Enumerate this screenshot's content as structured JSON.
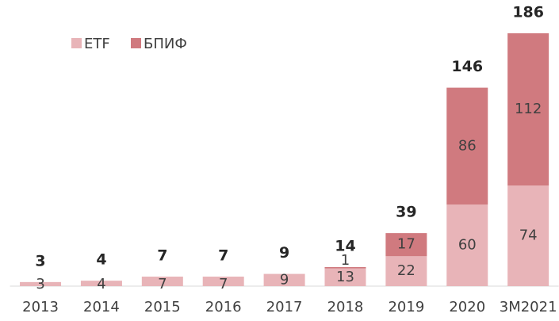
{
  "chart_data": {
    "type": "bar",
    "stacked": true,
    "categories": [
      "2013",
      "2014",
      "2015",
      "2016",
      "2017",
      "2018",
      "2019",
      "2020",
      "3M2021"
    ],
    "series": [
      {
        "name": "ETF",
        "color": "#e8b4b8",
        "values": [
          3,
          4,
          7,
          7,
          9,
          13,
          22,
          60,
          74
        ]
      },
      {
        "name": "БПИФ",
        "color": "#d07a7f",
        "values": [
          null,
          null,
          null,
          null,
          null,
          1,
          17,
          86,
          112
        ]
      }
    ],
    "totals": [
      3,
      4,
      7,
      7,
      9,
      14,
      39,
      146,
      186
    ],
    "ylim": [
      0,
      186
    ],
    "legend": "top-left"
  }
}
